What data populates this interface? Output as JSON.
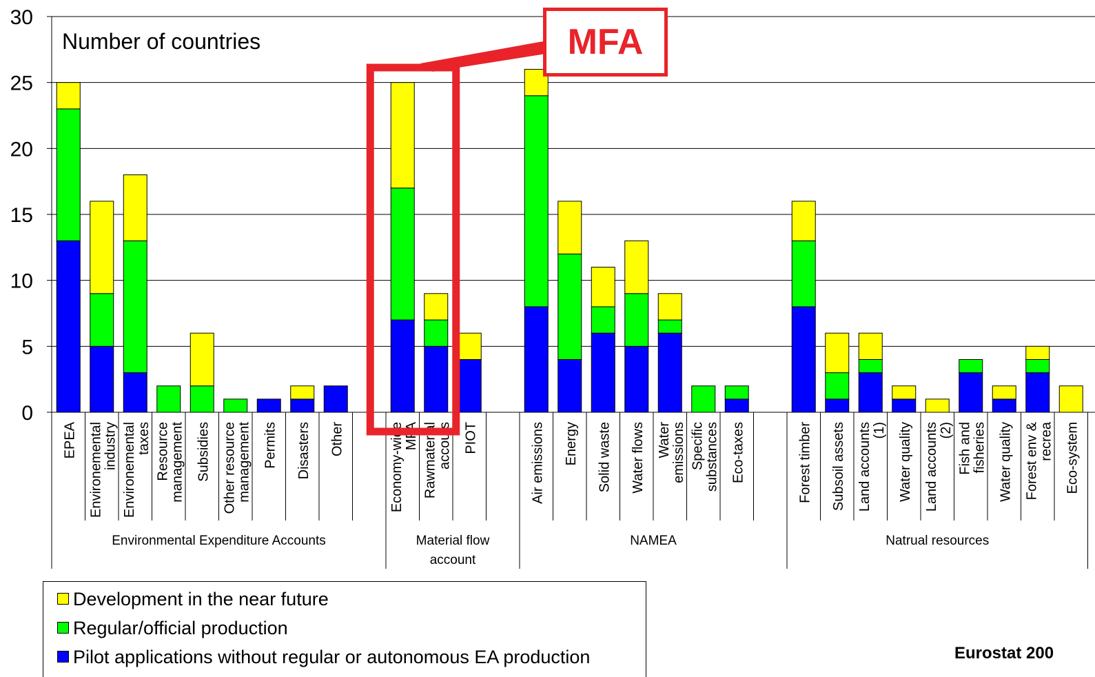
{
  "chart_data": {
    "type": "bar",
    "stacked": true,
    "annotation_label": "Number of countries",
    "callout_label": "MFA",
    "source": "Eurostat 200",
    "ylim": [
      0,
      30
    ],
    "yticks": [
      0,
      5,
      10,
      15,
      20,
      25,
      30
    ],
    "grid": true,
    "legend_placement": "bottom-left",
    "groups": [
      {
        "label": "Environmental Expenditure Accounts",
        "label_lines": [
          "Environmental Expenditure Accounts"
        ]
      },
      {
        "label": "Material flow account",
        "label_lines": [
          "Material flow",
          "account"
        ]
      },
      {
        "label": "NAMEA",
        "label_lines": [
          "NAMEA"
        ]
      },
      {
        "label": "Natrual resources",
        "label_lines": [
          "Natrual resources"
        ]
      }
    ],
    "series": [
      {
        "name": "Pilot applications without regular or autonomous EA production",
        "color": "#0000ff"
      },
      {
        "name": "Regular/official production",
        "color": "#00ff00"
      },
      {
        "name": "Development in the near future",
        "color": "#ffff00"
      }
    ],
    "categories": [
      {
        "lines": [
          "EPEA"
        ],
        "group": 0,
        "values": [
          13,
          10,
          2
        ]
      },
      {
        "lines": [
          "Environemental",
          "industry"
        ],
        "group": 0,
        "values": [
          5,
          4,
          7
        ]
      },
      {
        "lines": [
          "Environemental",
          "taxes"
        ],
        "group": 0,
        "values": [
          3,
          10,
          5
        ]
      },
      {
        "lines": [
          "Resource",
          "management"
        ],
        "group": 0,
        "values": [
          0,
          2,
          0
        ]
      },
      {
        "lines": [
          "Subsidies"
        ],
        "group": 0,
        "values": [
          0,
          2,
          4
        ]
      },
      {
        "lines": [
          "Other resource",
          "management"
        ],
        "group": 0,
        "values": [
          0,
          1,
          0
        ]
      },
      {
        "lines": [
          "Permits"
        ],
        "group": 0,
        "values": [
          1,
          0,
          0
        ]
      },
      {
        "lines": [
          "Disasters"
        ],
        "group": 0,
        "values": [
          1,
          0,
          1
        ]
      },
      {
        "lines": [
          "Other"
        ],
        "group": 0,
        "values": [
          2,
          0,
          0
        ]
      },
      {
        "lines": [],
        "group": 0,
        "values": [
          0,
          0,
          0
        ]
      },
      {
        "lines": [
          "Economy-wide",
          "MFA"
        ],
        "group": 1,
        "values": [
          7,
          10,
          8
        ]
      },
      {
        "lines": [
          "Rawmaterial",
          "accouts"
        ],
        "group": 1,
        "values": [
          5,
          2,
          2
        ]
      },
      {
        "lines": [
          "PIOT"
        ],
        "group": 1,
        "values": [
          4,
          0,
          2
        ]
      },
      {
        "lines": [],
        "group": 1,
        "values": [
          0,
          0,
          0
        ]
      },
      {
        "lines": [
          "Air emissions"
        ],
        "group": 2,
        "values": [
          8,
          16,
          2
        ]
      },
      {
        "lines": [
          "Energy"
        ],
        "group": 2,
        "values": [
          4,
          8,
          4
        ]
      },
      {
        "lines": [
          "Solid waste"
        ],
        "group": 2,
        "values": [
          6,
          2,
          3
        ]
      },
      {
        "lines": [
          "Water flows"
        ],
        "group": 2,
        "values": [
          5,
          4,
          4
        ]
      },
      {
        "lines": [
          "Water",
          "emissions"
        ],
        "group": 2,
        "values": [
          6,
          1,
          2
        ]
      },
      {
        "lines": [
          "Specific",
          "substances"
        ],
        "group": 2,
        "values": [
          0,
          2,
          0
        ]
      },
      {
        "lines": [
          "Eco-taxes"
        ],
        "group": 2,
        "values": [
          1,
          1,
          0
        ]
      },
      {
        "lines": [],
        "group": 2,
        "values": [
          0,
          0,
          0
        ]
      },
      {
        "lines": [
          "Forest timber"
        ],
        "group": 3,
        "values": [
          8,
          5,
          3
        ]
      },
      {
        "lines": [
          "Subsoil assets"
        ],
        "group": 3,
        "values": [
          1,
          2,
          3
        ]
      },
      {
        "lines": [
          "Land accounts",
          "(1)"
        ],
        "group": 3,
        "values": [
          3,
          1,
          2
        ]
      },
      {
        "lines": [
          "Water quality"
        ],
        "group": 3,
        "values": [
          1,
          0,
          1
        ]
      },
      {
        "lines": [
          "Land accounts",
          "(2)"
        ],
        "group": 3,
        "values": [
          0,
          0,
          1
        ]
      },
      {
        "lines": [
          "Fish and",
          "fisheries"
        ],
        "group": 3,
        "values": [
          3,
          1,
          0
        ]
      },
      {
        "lines": [
          "Water quality"
        ],
        "group": 3,
        "values": [
          1,
          0,
          1
        ]
      },
      {
        "lines": [
          "Forest env &",
          "recrea"
        ],
        "group": 3,
        "values": [
          3,
          1,
          1
        ]
      },
      {
        "lines": [
          "Eco-system"
        ],
        "group": 3,
        "values": [
          0,
          0,
          2
        ]
      }
    ]
  }
}
